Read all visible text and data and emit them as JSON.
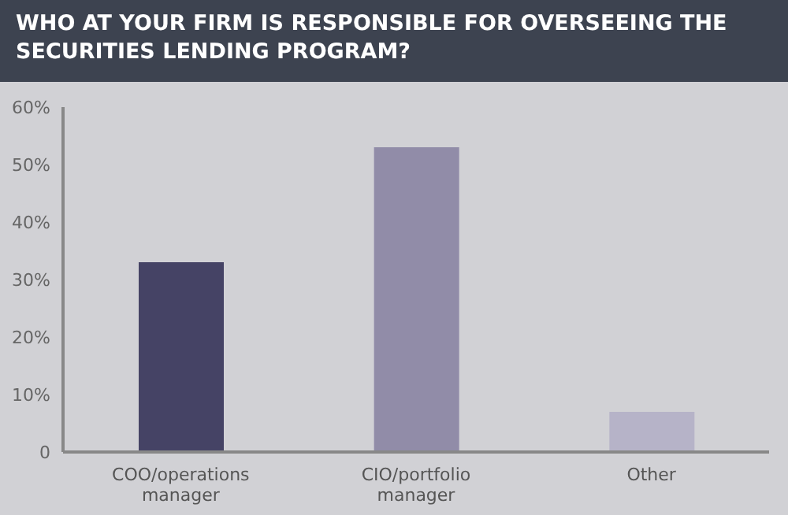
{
  "chart_data": {
    "type": "bar",
    "title": "WHO AT YOUR FIRM IS RESPONSIBLE FOR OVERSEEING THE SECURITIES LENDING PROGRAM?",
    "categories": [
      "COO/operations manager",
      "CIO/portfolio manager",
      "Other"
    ],
    "values": [
      33,
      53,
      7
    ],
    "colors": [
      "#454365",
      "#918ca8",
      "#b6b3c8"
    ],
    "ylim": [
      0,
      60
    ],
    "yticks": [
      {
        "value": 0,
        "label": "0"
      },
      {
        "value": 10,
        "label": "10%"
      },
      {
        "value": 20,
        "label": "20%"
      },
      {
        "value": 30,
        "label": "30%"
      },
      {
        "value": 40,
        "label": "40%"
      },
      {
        "value": 50,
        "label": "50%"
      },
      {
        "value": 60,
        "label": "60%"
      }
    ],
    "grid": false,
    "legend": false
  }
}
